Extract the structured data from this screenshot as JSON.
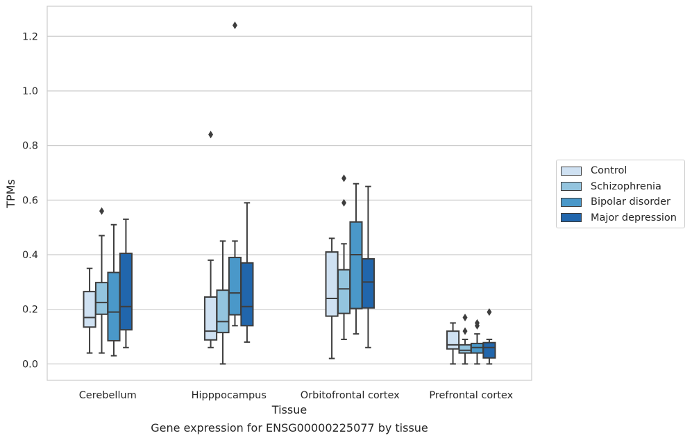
{
  "chart_data": {
    "type": "box",
    "title": "Gene expression for ENSG00000225077 by tissue",
    "xlabel": "Tissue",
    "ylabel": "TPMs",
    "ylim": [
      -0.06,
      1.31
    ],
    "yticks": [
      0.0,
      0.2,
      0.4,
      0.6,
      0.8,
      1.0,
      1.2
    ],
    "ytick_labels": [
      "0.0",
      "0.2",
      "0.4",
      "0.6",
      "0.8",
      "1.0",
      "1.2"
    ],
    "grid": "horizontal",
    "legend_position": "right",
    "categories": [
      "Cerebellum",
      "Hipppocampus",
      "Orbitofrontal cortex",
      "Prefrontal cortex"
    ],
    "series": [
      {
        "name": "Control",
        "color": "#cfe1f2",
        "boxes": [
          {
            "whislo": 0.04,
            "q1": 0.135,
            "med": 0.17,
            "q3": 0.265,
            "whishi": 0.35,
            "fliers": []
          },
          {
            "whislo": 0.06,
            "q1": 0.088,
            "med": 0.12,
            "q3": 0.245,
            "whishi": 0.38,
            "fliers": [
              0.84
            ]
          },
          {
            "whislo": 0.02,
            "q1": 0.175,
            "med": 0.24,
            "q3": 0.41,
            "whishi": 0.46,
            "fliers": []
          },
          {
            "whislo": 0.0,
            "q1": 0.055,
            "med": 0.07,
            "q3": 0.12,
            "whishi": 0.15,
            "fliers": []
          }
        ]
      },
      {
        "name": "Schizophrenia",
        "color": "#93c4de",
        "boxes": [
          {
            "whislo": 0.04,
            "q1": 0.182,
            "med": 0.225,
            "q3": 0.298,
            "whishi": 0.47,
            "fliers": [
              0.56
            ]
          },
          {
            "whislo": 0.0,
            "q1": 0.115,
            "med": 0.155,
            "q3": 0.27,
            "whishi": 0.45,
            "fliers": []
          },
          {
            "whislo": 0.09,
            "q1": 0.185,
            "med": 0.275,
            "q3": 0.345,
            "whishi": 0.44,
            "fliers": [
              0.59,
              0.68
            ]
          },
          {
            "whislo": 0.0,
            "q1": 0.04,
            "med": 0.05,
            "q3": 0.07,
            "whishi": 0.09,
            "fliers": [
              0.12,
              0.17
            ]
          }
        ]
      },
      {
        "name": "Bipolar disorder",
        "color": "#4a98c9",
        "boxes": [
          {
            "whislo": 0.03,
            "q1": 0.085,
            "med": 0.19,
            "q3": 0.335,
            "whishi": 0.51,
            "fliers": []
          },
          {
            "whislo": 0.14,
            "q1": 0.18,
            "med": 0.26,
            "q3": 0.39,
            "whishi": 0.45,
            "fliers": [
              1.24
            ]
          },
          {
            "whislo": 0.11,
            "q1": 0.203,
            "med": 0.4,
            "q3": 0.52,
            "whishi": 0.66,
            "fliers": []
          },
          {
            "whislo": 0.0,
            "q1": 0.04,
            "med": 0.06,
            "q3": 0.075,
            "whishi": 0.11,
            "fliers": [
              0.14,
              0.15
            ]
          }
        ]
      },
      {
        "name": "Major depression",
        "color": "#2166ac",
        "boxes": [
          {
            "whislo": 0.06,
            "q1": 0.125,
            "med": 0.21,
            "q3": 0.405,
            "whishi": 0.53,
            "fliers": []
          },
          {
            "whislo": 0.08,
            "q1": 0.14,
            "med": 0.21,
            "q3": 0.37,
            "whishi": 0.59,
            "fliers": []
          },
          {
            "whislo": 0.06,
            "q1": 0.205,
            "med": 0.3,
            "q3": 0.385,
            "whishi": 0.65,
            "fliers": []
          },
          {
            "whislo": 0.0,
            "q1": 0.022,
            "med": 0.06,
            "q3": 0.078,
            "whishi": 0.09,
            "fliers": [
              0.19
            ]
          }
        ]
      }
    ]
  }
}
